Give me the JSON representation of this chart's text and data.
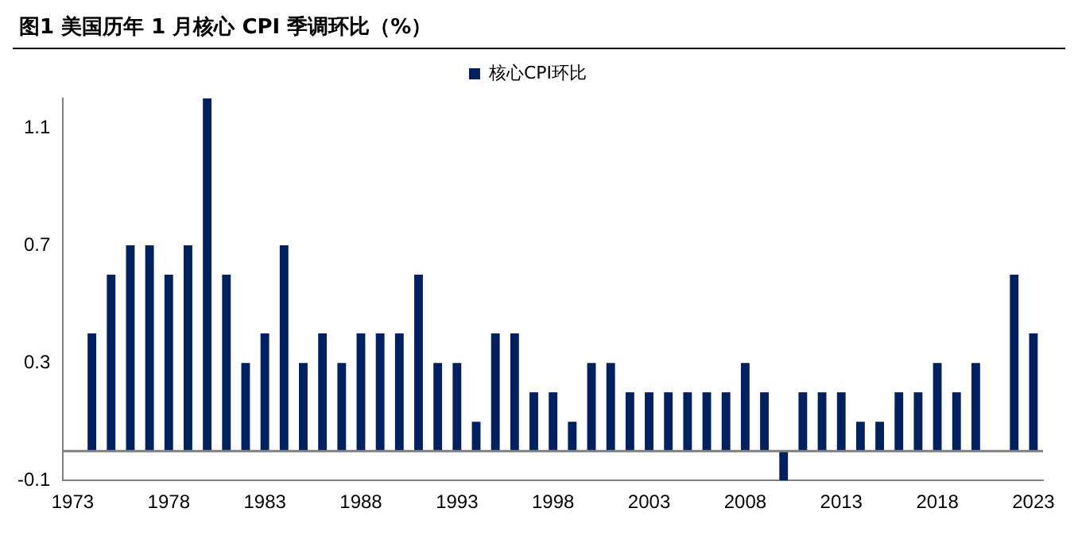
{
  "chart_data": {
    "type": "bar",
    "title": "图1  美国历年 1 月核心 CPI 季调环比（%）",
    "categories": [
      "1973",
      null,
      null,
      null,
      null,
      "1978",
      null,
      null,
      null,
      null,
      "1983",
      null,
      null,
      null,
      null,
      "1988",
      null,
      null,
      null,
      null,
      "1993",
      null,
      null,
      null,
      null,
      "1998",
      null,
      null,
      null,
      null,
      "2003",
      null,
      null,
      null,
      null,
      "2008",
      null,
      null,
      null,
      null,
      "2013",
      null,
      null,
      null,
      null,
      "2018",
      null,
      null,
      null,
      null,
      "2023"
    ],
    "series": [
      {
        "name": "核心CPI环比",
        "color": "#002060",
        "values": [
          0,
          0.4,
          0.6,
          0.7,
          0.7,
          0.6,
          0.7,
          1.2,
          0.6,
          0.3,
          0.4,
          0.7,
          0.3,
          0.4,
          0.3,
          0.4,
          0.4,
          0.4,
          0.6,
          0.3,
          0.3,
          0.1,
          0.4,
          0.4,
          0.2,
          0.2,
          0.1,
          0.3,
          0.3,
          0.2,
          0.2,
          0.2,
          0.2,
          0.2,
          0.2,
          0.3,
          0.2,
          -0.1,
          0.2,
          0.2,
          0.2,
          0.1,
          0.1,
          0.2,
          0.2,
          0.3,
          0.2,
          0.3,
          0,
          0.6,
          0.4
        ]
      }
    ],
    "ylim": [
      -0.1,
      1.2
    ],
    "yticks": [
      -0.1,
      0.3,
      0.7,
      1.1
    ],
    "grid": false,
    "legend": "top"
  }
}
